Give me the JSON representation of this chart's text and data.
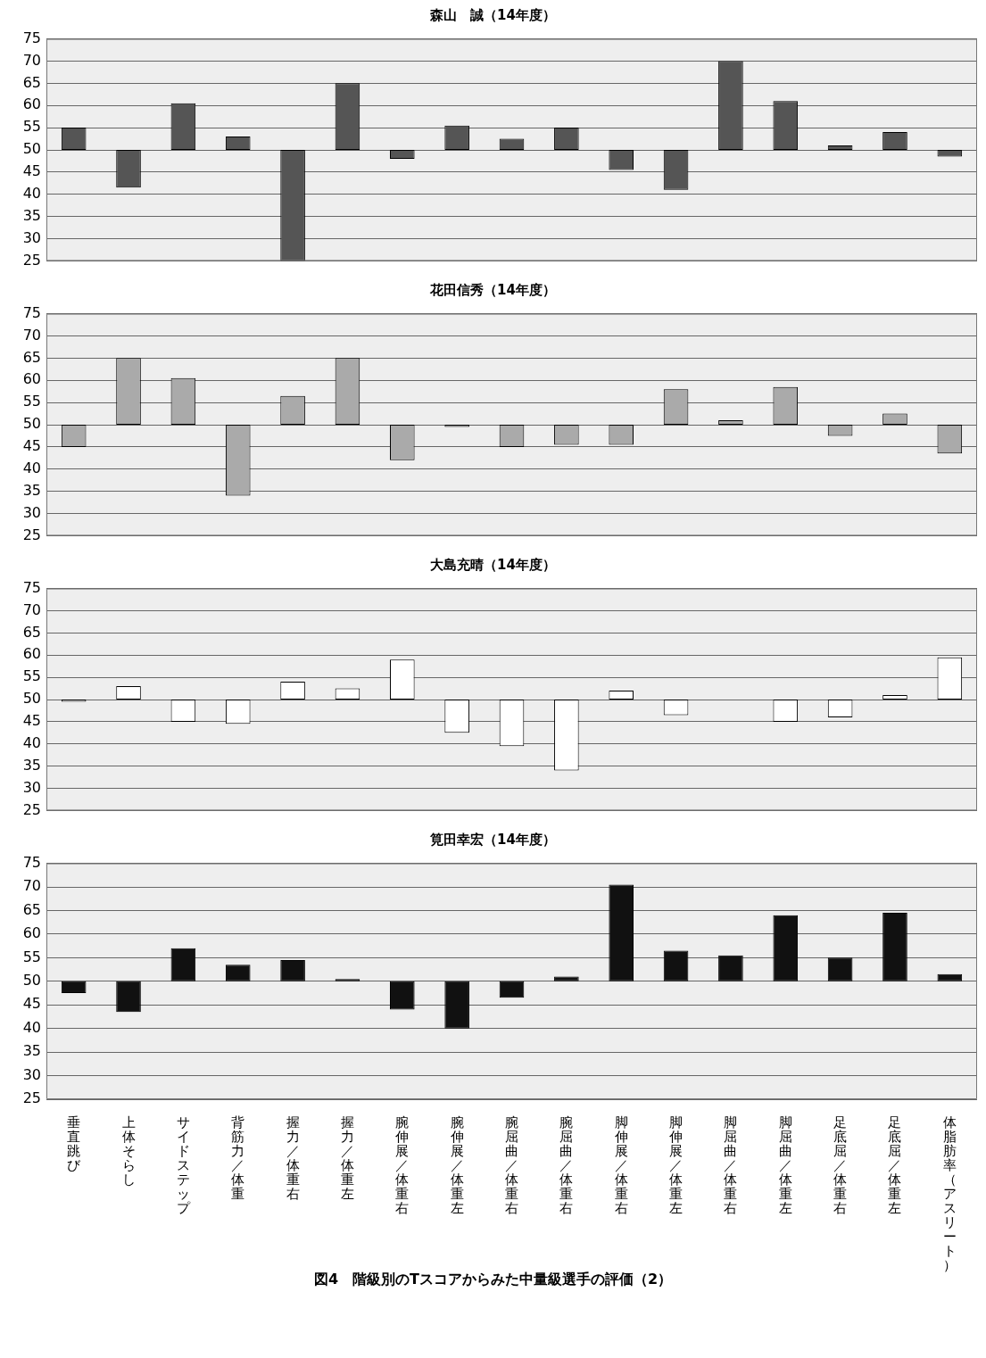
{
  "chart_data": [
    {
      "type": "bar",
      "title": "森山　誠（14年度）",
      "categories": [
        null,
        null,
        null,
        null,
        null,
        null,
        null,
        null,
        null,
        null,
        null,
        null,
        null,
        null,
        null,
        null,
        null
      ],
      "base": [
        50,
        50,
        50,
        50,
        50,
        50,
        50,
        50,
        50,
        50,
        50,
        50,
        50,
        50,
        50,
        50,
        50
      ],
      "values": [
        5,
        -8.5,
        10.5,
        3,
        -25,
        15,
        -2,
        5.5,
        2.5,
        5,
        -4.5,
        -9,
        20,
        11,
        1,
        4,
        -1.5
      ],
      "color": "#555555",
      "ylim": [
        25,
        75
      ],
      "yticks": [
        25,
        30,
        35,
        40,
        45,
        50,
        55,
        60,
        65,
        70,
        75
      ],
      "grid": "y",
      "tick_labels": "y"
    },
    {
      "type": "bar",
      "title": "花田信秀（14年度）",
      "categories": [
        null,
        null,
        null,
        null,
        null,
        null,
        null,
        null,
        null,
        null,
        null,
        null,
        null,
        null,
        null,
        null,
        null
      ],
      "base": [
        50,
        50,
        50,
        50,
        50,
        50,
        50,
        50,
        50,
        50,
        50,
        50,
        50,
        50,
        50,
        50,
        50
      ],
      "values": [
        -5,
        15,
        10.5,
        -16,
        6.5,
        15,
        -8,
        -0.5,
        -5,
        -4.5,
        -4.5,
        8,
        1,
        8.5,
        -2.5,
        2.5,
        -6.5
      ],
      "color": "#aaaaaa",
      "ylim": [
        25,
        75
      ],
      "yticks": [
        25,
        30,
        35,
        40,
        45,
        50,
        55,
        60,
        65,
        70,
        75
      ],
      "grid": "y",
      "tick_labels": "y"
    },
    {
      "type": "bar",
      "title": "大島充晴（14年度）",
      "categories": [
        null,
        null,
        null,
        null,
        null,
        null,
        null,
        null,
        null,
        null,
        null,
        null,
        null,
        null,
        null,
        null,
        null
      ],
      "base": [
        50,
        50,
        50,
        50,
        50,
        50,
        50,
        50,
        50,
        50,
        50,
        50,
        null,
        50,
        50,
        50,
        50
      ],
      "values": [
        -0.5,
        3,
        -5,
        -5.5,
        4,
        2.5,
        9,
        -7.5,
        -10.5,
        -16,
        2,
        -3.5,
        null,
        -5,
        -4,
        1,
        9.5
      ],
      "color": "#ffffff",
      "ylim": [
        25,
        75
      ],
      "yticks": [
        25,
        30,
        35,
        40,
        45,
        50,
        55,
        60,
        65,
        70,
        75
      ],
      "grid": "y",
      "tick_labels": "y"
    },
    {
      "type": "bar",
      "title": "筧田幸宏（14年度）",
      "categories": [
        "垂直跳び",
        "上体そらし",
        "サイドステップ",
        "背筋力／体重",
        "握力／体重右",
        "握力／体重左",
        "腕伸展／体重右",
        "腕伸展／体重左",
        "腕屈曲／体重右",
        "腕屈曲／体重右",
        "脚伸展／体重右",
        "脚伸展／体重左",
        "脚屈曲／体重右",
        "脚屈曲／体重左",
        "足底屈／体重右",
        "足底屈／体重左",
        "体脂肪率（アスリート）"
      ],
      "base": [
        50,
        50,
        50,
        50,
        50,
        50,
        50,
        50,
        50,
        50,
        50,
        50,
        50,
        50,
        50,
        50,
        50
      ],
      "values": [
        -2.5,
        -6.5,
        7,
        3.5,
        4.5,
        0.5,
        -6,
        -10,
        -3.5,
        1,
        20.5,
        6.5,
        5.5,
        14,
        5,
        14.5,
        1.5
      ],
      "color": "#111111",
      "ylim": [
        25,
        75
      ],
      "yticks": [
        25,
        30,
        35,
        40,
        45,
        50,
        55,
        60,
        65,
        70,
        75
      ],
      "grid": "y",
      "annotations": [
        "図4　階級別のTスコアからみた中量級選手の評価（2）"
      ]
    }
  ]
}
